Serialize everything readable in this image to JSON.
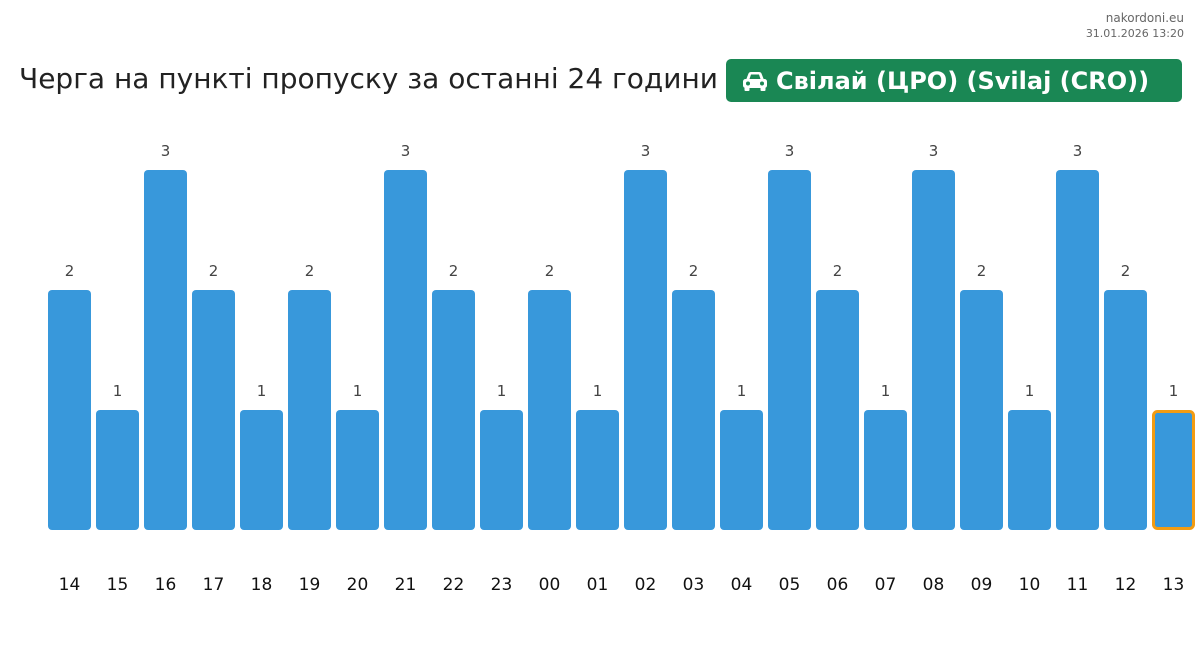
{
  "site": {
    "name": "nakordoni.eu",
    "timestamp": "31.01.2026 13:20"
  },
  "header": {
    "title": "Черга на пункті пропуску за останні 24 години",
    "checkpoint": "Свілай (ЦРО) (Svilaj (CRO))",
    "checkpoint_icon": "car-icon"
  },
  "colors": {
    "bar": "#3898db",
    "highlight_border": "#f39c12",
    "badge": "#1a8754"
  },
  "chart_data": {
    "type": "bar",
    "title": "",
    "xlabel": "",
    "ylabel": "",
    "categories": [
      "14",
      "15",
      "16",
      "17",
      "18",
      "19",
      "20",
      "21",
      "22",
      "23",
      "00",
      "01",
      "02",
      "03",
      "04",
      "05",
      "06",
      "07",
      "08",
      "09",
      "10",
      "11",
      "12",
      "13"
    ],
    "values": [
      2,
      1,
      3,
      2,
      1,
      2,
      1,
      3,
      2,
      1,
      2,
      1,
      3,
      2,
      1,
      3,
      2,
      1,
      3,
      2,
      1,
      3,
      2,
      1
    ],
    "ylim": [
      0,
      3
    ],
    "highlighted_category": "13",
    "grid": false,
    "legend": "none"
  }
}
